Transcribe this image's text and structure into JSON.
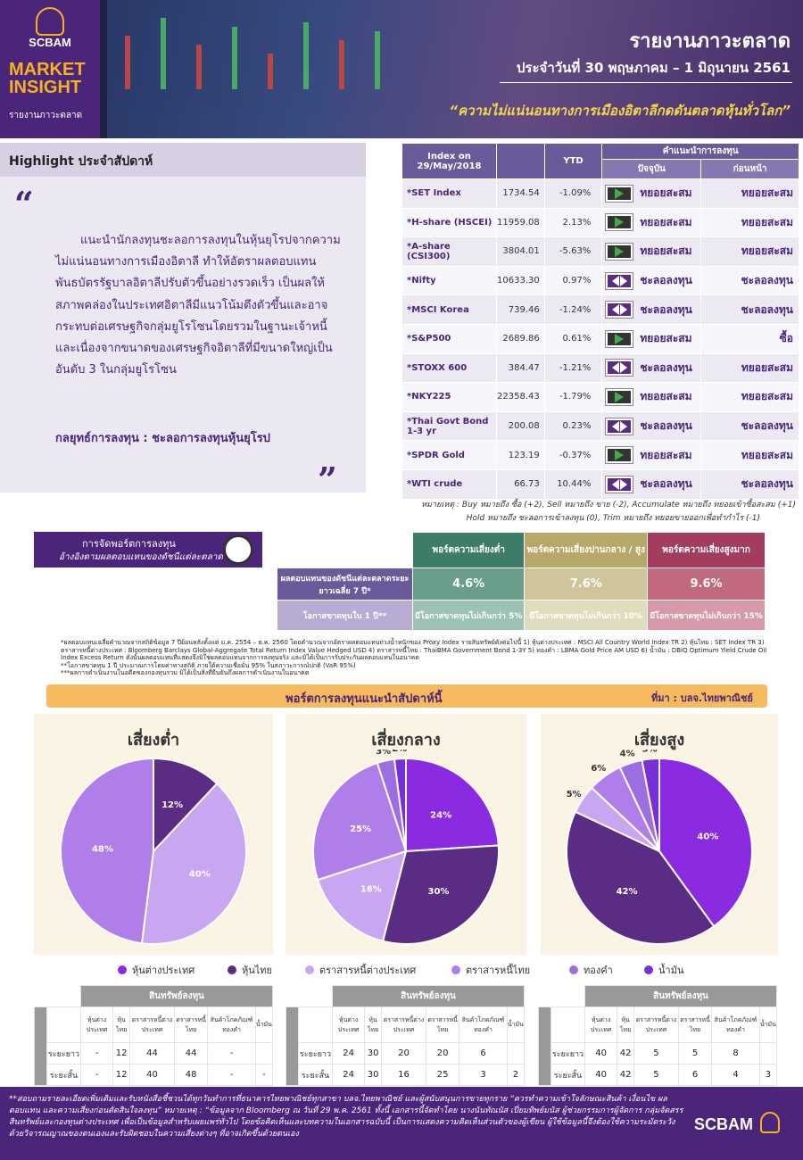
{
  "header": {
    "brand": "SCBAM",
    "product_line1": "MARKET",
    "product_line2": "INSIGHT",
    "product_sub": "รายงานภาวะตลาด",
    "title": "รายงานภาวะตลาด",
    "date": "ประจำวันที่ 30 พฤษภาคม – 1 มิถุนายน 2561",
    "headline": "“ความไม่แน่นอนทางการเมืองอิตาลีกดดันตลาดหุ้นทั่วโลก”"
  },
  "highlight": {
    "title": "Highlight ประจำสัปดาห์",
    "quote_open": "“",
    "quote_close": "”",
    "body": "แนะนำนักลงทุนชะลอการลงทุนในหุ้นยุโรปจากความไม่แน่นอนทางการเมืองอิตาลี ทำให้อัตราผลตอบแทนพันธบัตรรัฐบาลอิตาลีปรับตัวขึ้นอย่างรวดเร็ว เป็นผลให้สภาพคล่องในประเทศอิตาลีมีแนวโน้มตึงตัวขึ้นและอาจกระทบต่อเศรษฐกิจกลุ่มยูโรโซนโดยรวมในฐานะเจ้าหนี้ และเนื่องจากขนาดของเศรษฐกิจอิตาลีที่มีขนาดใหญ่เป็นอันดับ 3 ในกลุ่มยูโรโซน",
    "strategy": "กลยุทธ์การลงทุน : ชะลอการลงทุนหุ้นยุโรป"
  },
  "index_table": {
    "col_index": "Index on 29/May/2018",
    "col_ytd": "YTD",
    "col_rec": "คำแนะนำการลงทุน",
    "col_now": "ปัจจุบัน",
    "col_prev": "ก่อนหน้า",
    "rows": [
      {
        "name": "*SET Index",
        "value": "1734.54",
        "ytd": "-1.09%",
        "now": "ทยอยสะสม",
        "now_icon": "play-icon",
        "prev": "ทยอยสะสม"
      },
      {
        "name": "*H-share (HSCEI)",
        "value": "11959.08",
        "ytd": "2.13%",
        "now": "ทยอยสะสม",
        "now_icon": "play-icon",
        "prev": "ทยอยสะสม"
      },
      {
        "name": "*A-share (CSI300)",
        "value": "3804.01",
        "ytd": "-5.63%",
        "now": "ทยอยสะสม",
        "now_icon": "play-icon",
        "prev": "ทยอยสะสม"
      },
      {
        "name": "*Nifty",
        "value": "10633.30",
        "ytd": "0.97%",
        "now": "ชะลอลงทุน",
        "now_icon": "hold-icon",
        "prev": "ชะลอลงทุน"
      },
      {
        "name": "*MSCI Korea",
        "value": "739.46",
        "ytd": "-1.24%",
        "now": "ชะลอลงทุน",
        "now_icon": "hold-icon",
        "prev": "ชะลอลงทุน"
      },
      {
        "name": "*S&P500",
        "value": "2689.86",
        "ytd": "0.61%",
        "now": "ทยอยสะสม",
        "now_icon": "play-icon",
        "prev": "ซื้อ"
      },
      {
        "name": "*STOXX 600",
        "value": "384.47",
        "ytd": "-1.21%",
        "now": "ชะลอลงทุน",
        "now_icon": "hold-icon",
        "prev": "ทยอยสะสม"
      },
      {
        "name": "*NKY225",
        "value": "22358.43",
        "ytd": "-1.79%",
        "now": "ทยอยสะสม",
        "now_icon": "play-icon",
        "prev": "ทยอยสะสม"
      },
      {
        "name": "*Thai Govt Bond 1-3 yr",
        "value": "200.08",
        "ytd": "0.23%",
        "now": "ชะลอลงทุน",
        "now_icon": "hold-icon",
        "prev": "ชะลอลงทุน"
      },
      {
        "name": "*SPDR Gold",
        "value": "123.19",
        "ytd": "-0.37%",
        "now": "ทยอยสะสม",
        "now_icon": "play-icon",
        "prev": "ทยอยสะสม"
      },
      {
        "name": "*WTI crude",
        "value": "66.73",
        "ytd": "10.44%",
        "now": "ชะลอลงทุน",
        "now_icon": "hold-icon",
        "prev": "ชะลอลงทุน"
      }
    ],
    "note1": "หมายเหตุ : Buy หมายถึง ซื้อ (+2), Sell หมายถึง ขาย (-2), Accumulate หมายถึง ทยอยเข้าซื้อสะสม (+1)",
    "note2": "Hold หมายถึง ชะลอการเข้าลงทุน (0), Trim หมายถึง ทยอยขายออกเพื่อทำกำไร (-1)"
  },
  "allocation": {
    "title": "การจัดพอร์ตการลงทุน",
    "subtitle": "อ้างอิงตามผลตอบแทนของดัชนีแต่ละตลาด",
    "headers": [
      "พอร์ตความเสี่ยงต่ำ",
      "พอร์ตความเสี่ยงปานกลาง / สูง",
      "พอร์ตความเสี่ยงสูงมาก"
    ],
    "row1_label": "ผลตอบแทนของดัชนีแต่ละตลาดระยะยาวเฉลี่ย 7 ปี*",
    "row1": [
      "4.6%",
      "7.6%",
      "9.6%"
    ],
    "row2_label": "โอกาสขาดทุนใน 1 ปี**",
    "row2": [
      "มีโอกาสขาดทุนไม่เกินกว่า 5%",
      "มีโอกาสขาดทุนไม่เกินกว่า 10%",
      "มีโอกาสขาดทุนไม่เกินกว่า 15%"
    ],
    "footnote1": "*ผลตอบแทนเฉลี่ยคำนวณจากสถิติข้อมูล 7 ปีย้อนหลังตั้งแต่ ม.ค. 2554 – ธ.ค. 2560 โดยคำนวณจากอัตราผลตอบแทนถ่วงน้ำหนักของ Proxy Index รายสินทรัพย์ดังต่อไปนี้ 1) หุ้นต่างประเทศ : MSCI All Country World Index TR 2) หุ้นไทย : SET Index TR 3) ตราสารหนี้ต่างประเทศ : Bloomberg Barclays Global-Aggregate Total Return Index Value Hedged USD 4) ตราสารหนี้ไทย : ThaiBMA Government Bond 1-3Y 5) ทองคำ : LBMA Gold Price AM USD 6) น้ำมัน : DBIQ Optimum Yield Crude Oil Index Excess Return ดังนั้นผลตอบแทนที่แสดงจึงมิใช่ผลตอบแทนจากการลงทุนจริง และมิได้เป็นการรับประกันผลตอบแทนในอนาคต",
    "footnote2": "**โอกาสขาดทุน 1 ปี ประมาณการโดยค่าทางสถิติ ภายใต้ความเชื่อมั่น 95% ในสภาวะการณ์ปกติ (VaR 95%)",
    "footnote3": "***ผลการดำเนินงานในอดีตของกองทุนรวม มิได้เป็นสิ่งที่ยืนยันถึงผลการดำเนินงานในอนาคต"
  },
  "recommended": {
    "title": "พอร์ตการลงทุนแนะนำสัปดาห์นี้",
    "source": "ที่มา : บลจ.ไทยพาณิชย์"
  },
  "colors": {
    "foreign_equity": "#8a2be2",
    "thai_equity": "#5b2c83",
    "foreign_bond": "#c9a6f2",
    "thai_bond": "#b07ee8",
    "gold": "#9b6fe0",
    "oil": "#7a2ed6"
  },
  "chart_data": [
    {
      "type": "pie",
      "title": "เสี่ยงต่ำ",
      "categories": [
        "หุ้นไทย",
        "ตราสารหนี้ต่างประเทศ",
        "ตราสารหนี้ไทย"
      ],
      "values": [
        12,
        40,
        48
      ],
      "labels": [
        "12%",
        "40%",
        "48%"
      ],
      "colors": [
        "#5b2c83",
        "#c9a6f2",
        "#b07ee8"
      ]
    },
    {
      "type": "pie",
      "title": "เสี่ยงกลาง",
      "categories": [
        "หุ้นต่างประเทศ",
        "หุ้นไทย",
        "ตราสารหนี้ต่างประเทศ",
        "ตราสารหนี้ไทย",
        "ทองคำ",
        "น้ำมัน"
      ],
      "values": [
        24,
        30,
        16,
        25,
        3,
        2
      ],
      "labels": [
        "24%",
        "30%",
        "16%",
        "25%",
        "3%",
        "2%"
      ],
      "colors": [
        "#8a2be2",
        "#5b2c83",
        "#c9a6f2",
        "#b07ee8",
        "#9b6fe0",
        "#7a2ed6"
      ]
    },
    {
      "type": "pie",
      "title": "เสี่ยงสูง",
      "categories": [
        "หุ้นต่างประเทศ",
        "หุ้นไทย",
        "ตราสารหนี้ต่างประเทศ",
        "ตราสารหนี้ไทย",
        "ทองคำ",
        "น้ำมัน"
      ],
      "values": [
        40,
        42,
        5,
        6,
        4,
        3
      ],
      "labels": [
        "40%",
        "42%",
        "5%",
        "6%",
        "4%",
        "3%"
      ],
      "colors": [
        "#8a2be2",
        "#5b2c83",
        "#c9a6f2",
        "#b07ee8",
        "#9b6fe0",
        "#7a2ed6"
      ]
    }
  ],
  "legend": [
    "หุ้นต่างประเทศ",
    "หุ้นไทย",
    "ตราสารหนี้ต่างประเทศ",
    "ตราสารหนี้ไทย",
    "ทองคำ",
    "น้ำมัน"
  ],
  "asset_tables": {
    "title": "สินทรัพย์ลงทุน",
    "columns": [
      "หุ้นต่างประเทศ",
      "หุ้นไทย",
      "ตราสารหนี้ต่างประเทศ",
      "ตราสารหนี้ไทย",
      "สินค้าโภคภัณฑ์ ทองคำ",
      "น้ำมัน"
    ],
    "row_labels": [
      "ระยะยาว",
      "ระยะสั้น"
    ],
    "tables": [
      {
        "long": [
          "-",
          "12",
          "44",
          "44",
          "-",
          ""
        ],
        "short": [
          "-",
          "12",
          "40",
          "48",
          "-",
          "-"
        ]
      },
      {
        "long": [
          "24",
          "30",
          "20",
          "20",
          "6",
          ""
        ],
        "short": [
          "24",
          "30",
          "16",
          "25",
          "3",
          "2"
        ]
      },
      {
        "long": [
          "40",
          "42",
          "5",
          "5",
          "8",
          ""
        ],
        "short": [
          "40",
          "42",
          "5",
          "6",
          "4",
          "3"
        ]
      }
    ]
  },
  "footer": {
    "text": "**สอบถามรายละเอียดเพิ่มเติมและรับหนังสือชี้ชวนได้ทุกวันทำการที่ธนาคารไทยพาณิชย์ทุกสาขา บลจ.ไทยพาณิชย์ และผู้สนับสนุนการขายทุกราย “ควรทำความเข้าใจลักษณะสินค้า เงื่อนไข ผลตอบแทน และความเสี่ยงก่อนตัดสินใจลงทุน” หมายเหตุ : “ข้อมูลจาก Bloomberg ณ วันที่ 29 พ.ค. 2561 ทั้งนี้ เอกสารนี้จัดทำโดย นางนันทัณนัส เปี่ยมทิพย์มนัส ผู้ช่วยกรรมการผู้จัดการ กลุ่มจัดสรรสินทรัพย์และกองทุนต่างประเทศ เพื่อเป็นข้อมูลสำหรับเผยแพร่ทั่วไป โดยข้อคิดเห็นและบทความในเอกสารฉบับนี้ เป็นการแสดงความคิดเห็นส่วนตัวของผู้เขียน ผู้ใช้ข้อมูลนี้จึงต้องใช้ความระมัดระวังด้วยวิจารณญาณของตนเองและรับผิดชอบในความเสี่ยงต่างๆ ที่อาจเกิดขึ้นด้วยตนเอง",
    "brand": "SCBAM"
  }
}
